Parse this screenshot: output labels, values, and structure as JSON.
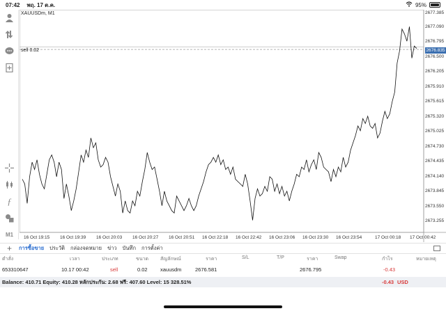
{
  "status": {
    "time": "07:42",
    "date": "พฤ. 17 ต.ค.",
    "battery": "95%",
    "wifi_icon": "wifi-icon",
    "battery_icon": "battery-icon"
  },
  "toolbar": {
    "timeframe": "M1",
    "icons": [
      "person-icon",
      "arrows-icon",
      "chat-icon",
      "add-page-icon",
      "crosshair-icon",
      "candles-icon",
      "function-icon",
      "shapes-icon"
    ]
  },
  "chart": {
    "symbol": "XAUUSDm, M1",
    "sell_label": "sell 0.02",
    "current_price": "2676.835",
    "price_labels": [
      "2677.385",
      "2677.090",
      "2676.795",
      "2676.500",
      "2676.205",
      "2675.910",
      "2675.615",
      "2675.320",
      "2675.025",
      "2674.730",
      "2674.435",
      "2674.140",
      "2673.845",
      "2673.550",
      "2673.255"
    ],
    "time_labels": [
      "16 Oct 19:15",
      "16 Oct 19:39",
      "16 Oct 20:03",
      "16 Oct 20:27",
      "16 Oct 20:51",
      "16 Oct 22:18",
      "16 Oct 22:42",
      "16 Oct 23:06",
      "16 Oct 23:30",
      "16 Oct 23:54",
      "17 Oct 00:18",
      "17 Oct 00:42"
    ]
  },
  "chart_data": {
    "type": "line",
    "ylim": [
      2673.0,
      2677.6
    ],
    "sell_level": 2676.78,
    "y": [
      2674.1,
      2674.0,
      2673.6,
      2674.15,
      2674.45,
      2674.3,
      2674.5,
      2674.2,
      2674.0,
      2673.9,
      2674.2,
      2674.5,
      2674.6,
      2674.45,
      2674.15,
      2674.45,
      2674.3,
      2673.7,
      2674.0,
      2673.75,
      2673.45,
      2673.65,
      2673.9,
      2674.25,
      2674.6,
      2674.45,
      2674.7,
      2674.55,
      2674.95,
      2674.75,
      2674.85,
      2674.5,
      2674.35,
      2674.4,
      2674.55,
      2674.45,
      2674.15,
      2673.95,
      2673.75,
      2674.0,
      2673.85,
      2673.4,
      2673.65,
      2673.45,
      2673.4,
      2673.65,
      2673.55,
      2673.85,
      2673.75,
      2674.05,
      2674.3,
      2674.65,
      2674.45,
      2674.3,
      2674.35,
      2674.1,
      2673.85,
      2673.55,
      2673.85,
      2673.65,
      2673.55,
      2673.45,
      2673.4,
      2673.75,
      2673.65,
      2673.55,
      2673.45,
      2673.55,
      2673.7,
      2673.55,
      2673.45,
      2673.55,
      2673.75,
      2673.9,
      2674.05,
      2674.25,
      2674.4,
      2674.45,
      2674.55,
      2674.45,
      2674.6,
      2674.4,
      2674.5,
      2674.3,
      2674.35,
      2674.2,
      2674.35,
      2674.1,
      2674.05,
      2674.0,
      2673.95,
      2674.2,
      2674.0,
      2673.65,
      2673.25,
      2673.7,
      2673.9,
      2673.75,
      2673.8,
      2673.95,
      2673.85,
      2674.15,
      2674.1,
      2673.85,
      2674.0,
      2673.8,
      2673.95,
      2673.75,
      2673.85,
      2673.65,
      2673.85,
      2674.0,
      2674.2,
      2674.15,
      2674.35,
      2674.3,
      2674.5,
      2674.25,
      2674.4,
      2674.5,
      2674.3,
      2674.65,
      2674.55,
      2674.35,
      2674.3,
      2674.25,
      2674.05,
      2674.3,
      2674.15,
      2674.35,
      2674.25,
      2674.55,
      2674.35,
      2674.45,
      2674.7,
      2674.85,
      2675.0,
      2675.2,
      2675.1,
      2675.35,
      2675.25,
      2675.4,
      2675.2,
      2675.15,
      2675.25,
      2674.95,
      2675.05,
      2675.3,
      2675.5,
      2675.35,
      2675.45,
      2675.7,
      2675.9,
      2676.5,
      2676.75,
      2677.2,
      2677.1,
      2676.95,
      2677.25,
      2676.6,
      2676.85,
      2676.8
    ]
  },
  "tabs": [
    "การซื้อขาย",
    "ประวัติ",
    "กล่องจดหมาย",
    "ข่าว",
    "บันทึก",
    "การตั้งค่า"
  ],
  "table": {
    "headers": [
      "ตำสั่ง",
      "เวลา",
      "ประเภท",
      "ขนาด",
      "สัญลักษณ์",
      "ราคา",
      "S/L",
      "T/P",
      "ราคา",
      "Swap",
      "กำไร",
      "หมายเหตุ"
    ],
    "row": {
      "order": "653310647",
      "time": "10.17 00:42",
      "type": "sell",
      "size": "0.02",
      "symbol": "xauusdm",
      "open_price": "2676.581",
      "sl": "",
      "tp": "",
      "price": "2676.795",
      "swap": "",
      "profit": "-0.43",
      "comment": ""
    }
  },
  "balance": {
    "text": "Balance: 410.71  Equity: 410.28  หลักประกัน: 2.68  ฟรี: 407.60  Level: 15 328.51%",
    "profit": "-0.43",
    "currency": "USD"
  }
}
